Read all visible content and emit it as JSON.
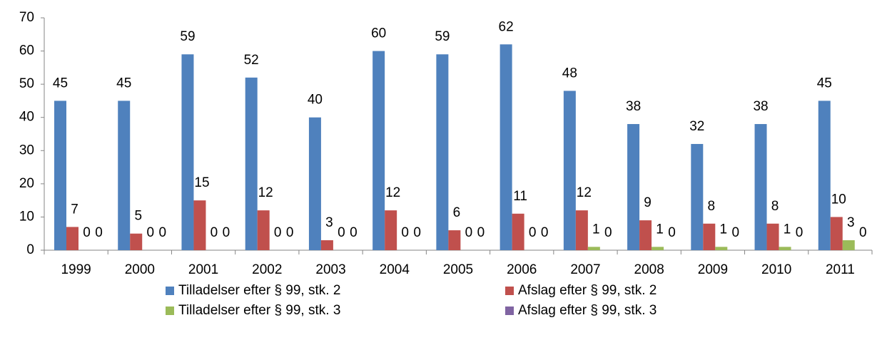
{
  "chart_data": {
    "type": "bar",
    "categories": [
      "1999",
      "2000",
      "2001",
      "2002",
      "2003",
      "2004",
      "2005",
      "2006",
      "2007",
      "2008",
      "2009",
      "2010",
      "2011"
    ],
    "series": [
      {
        "name": "Tilladelser efter § 99, stk. 2",
        "color": "#4f81bd",
        "values": [
          45,
          45,
          59,
          52,
          40,
          60,
          59,
          62,
          48,
          38,
          32,
          38,
          45
        ]
      },
      {
        "name": "Afslag efter § 99, stk. 2",
        "color": "#c0504d",
        "values": [
          7,
          5,
          15,
          12,
          3,
          12,
          6,
          11,
          12,
          9,
          8,
          8,
          10
        ]
      },
      {
        "name": "Tilladelser efter § 99, stk. 3",
        "color": "#9bbb59",
        "values": [
          0,
          0,
          0,
          0,
          0,
          0,
          0,
          0,
          1,
          1,
          1,
          1,
          3
        ]
      },
      {
        "name": "Afslag efter § 99, stk. 3",
        "color": "#8064a2",
        "values": [
          0,
          0,
          0,
          0,
          0,
          0,
          0,
          0,
          0,
          0,
          0,
          0,
          0
        ]
      }
    ],
    "ylim": [
      0,
      70
    ],
    "yticks": [
      0,
      10,
      20,
      30,
      40,
      50,
      60,
      70
    ],
    "grid": false,
    "legend": "bottom"
  }
}
